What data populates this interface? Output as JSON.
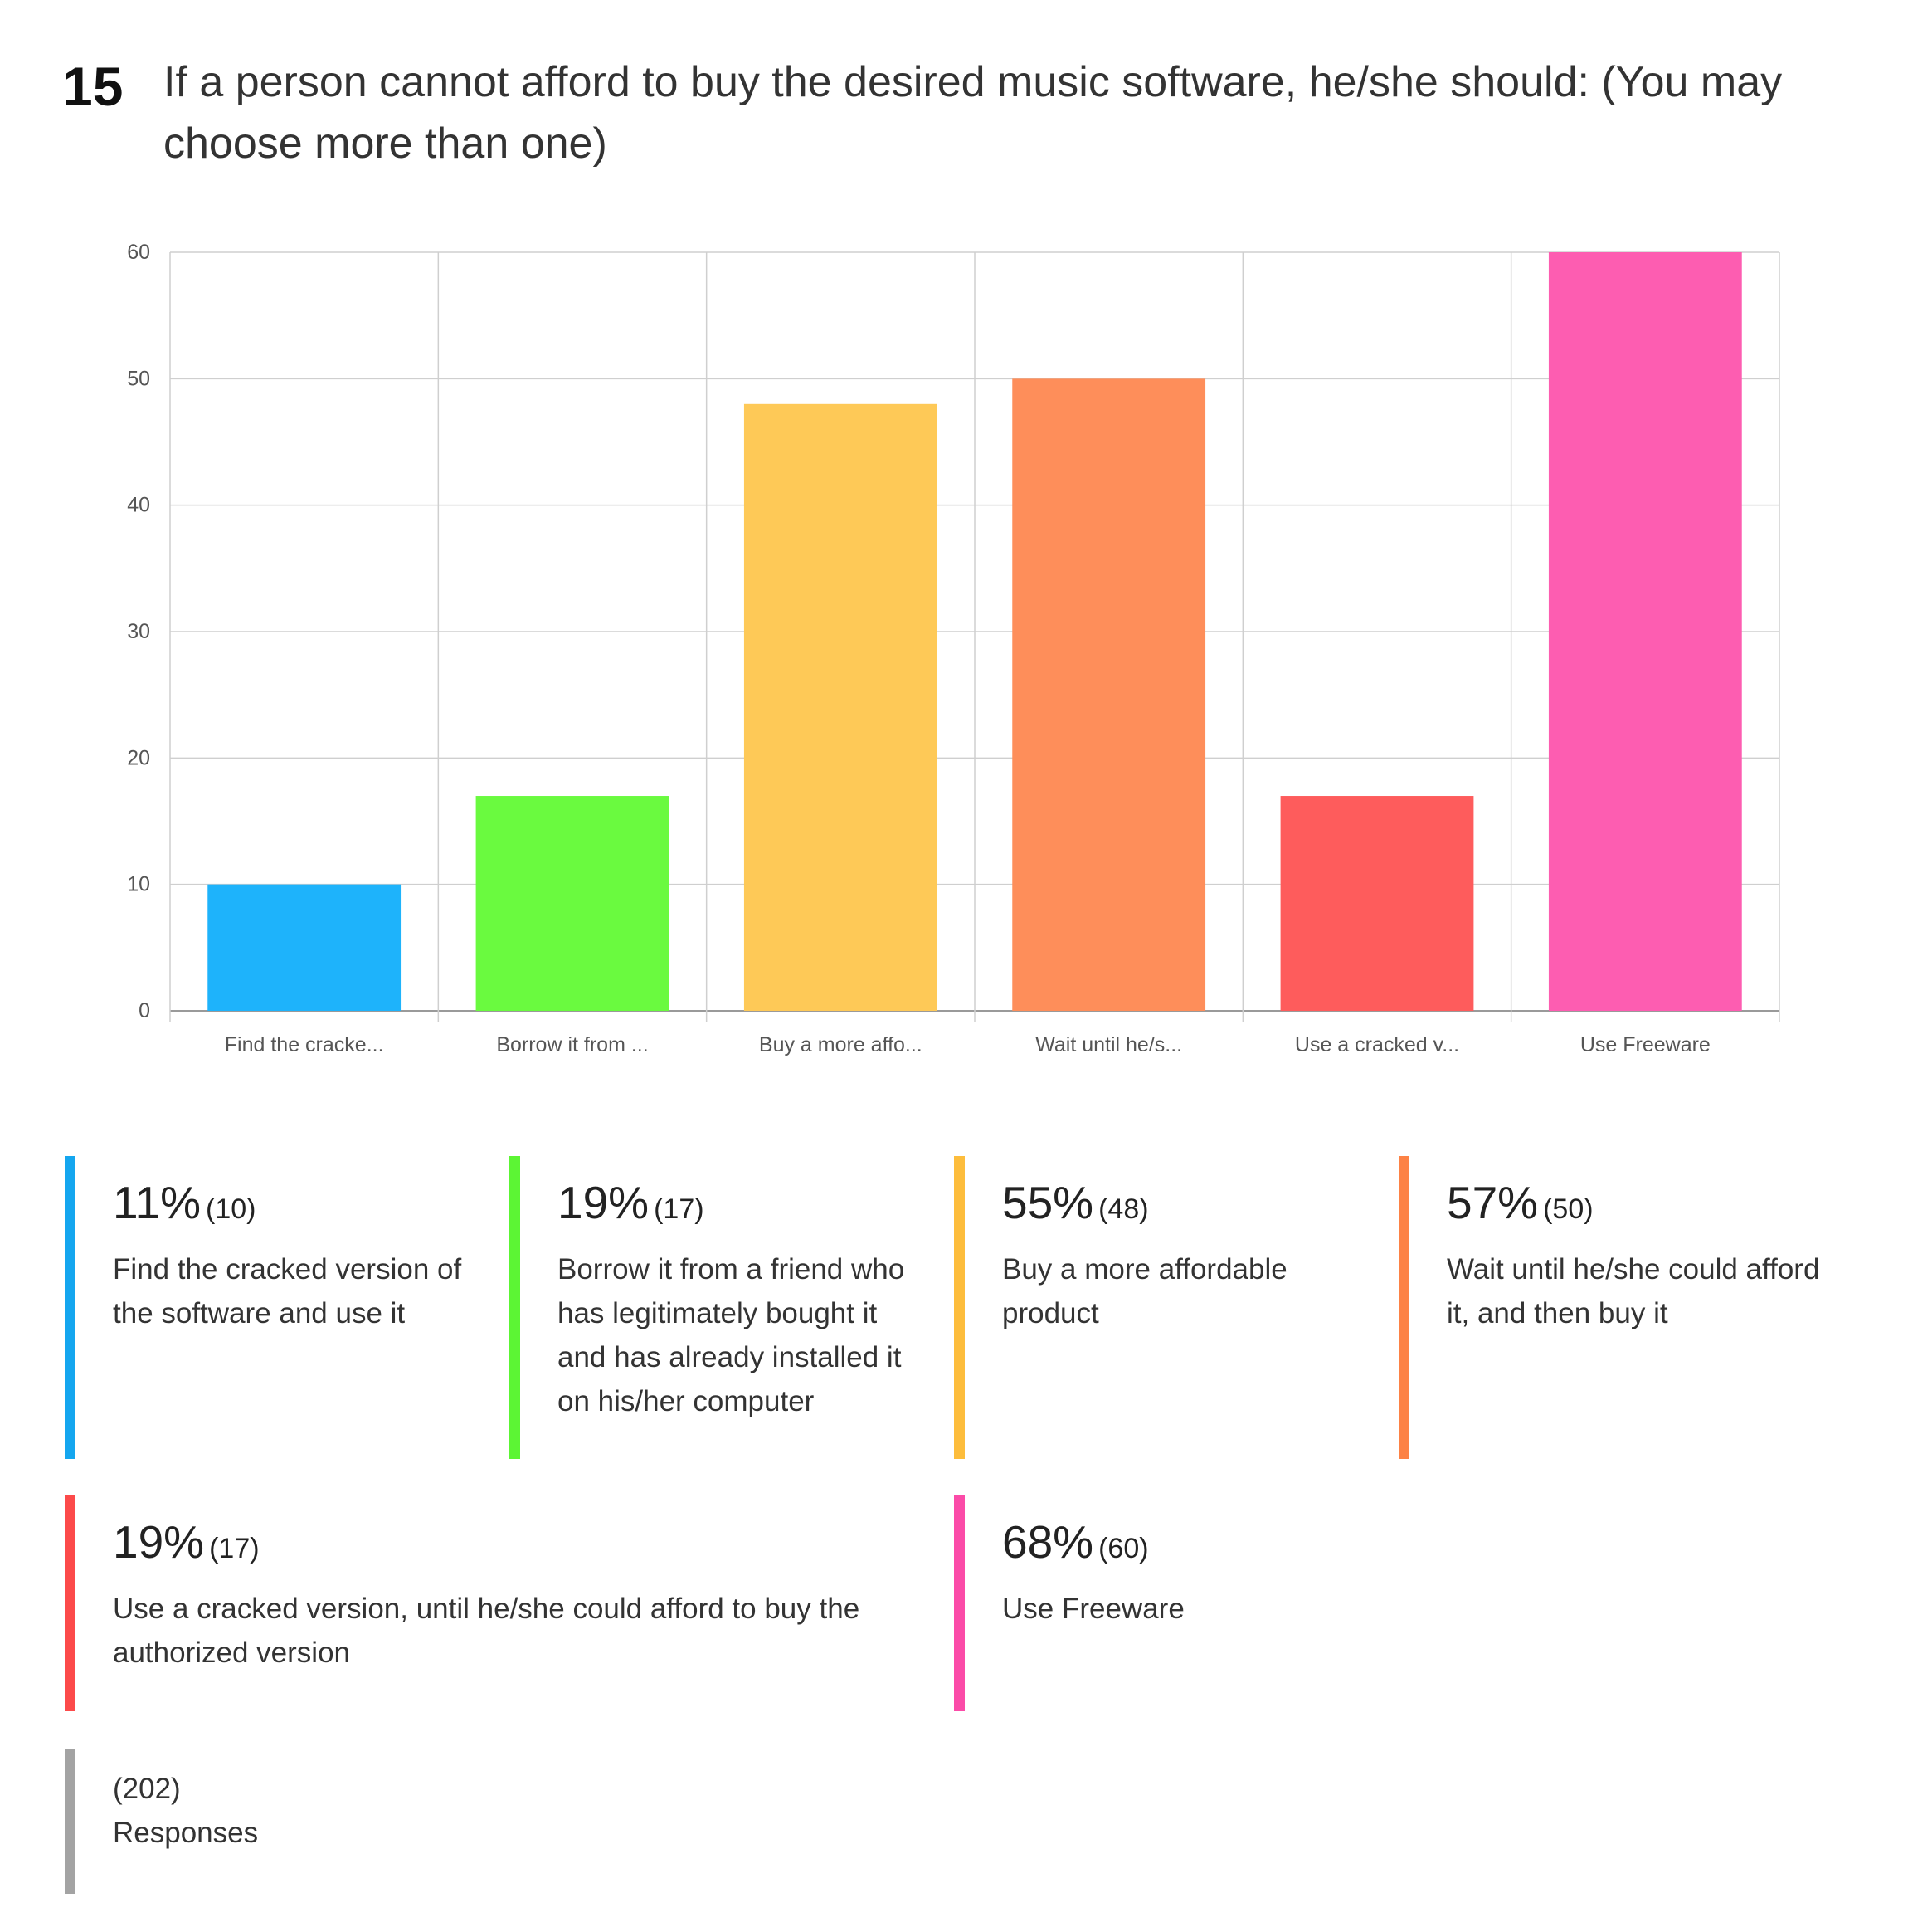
{
  "question": {
    "number": "15",
    "title": "If a person cannot afford to buy the desired music software, he/she should: (You may choose more than one)"
  },
  "chart_data": {
    "type": "bar",
    "categories": [
      "Find the cracke...",
      "Borrow it from ...",
      "Buy a more affo...",
      "Wait until he/s...",
      "Use a cracked v...",
      "Use Freeware"
    ],
    "values": [
      10,
      17,
      48,
      50,
      17,
      60
    ],
    "colors": [
      "#1eb3fb",
      "#6afa3f",
      "#fec957",
      "#fe8e5a",
      "#fe5c5c",
      "#fd5db1"
    ],
    "ylim": [
      0,
      60
    ],
    "yticks": [
      "0",
      "10",
      "20",
      "30",
      "40",
      "50",
      "60"
    ],
    "grid": true,
    "xlabel": "",
    "ylabel": ""
  },
  "legend": [
    {
      "pct": "11%",
      "count": "(10)",
      "label": "Find the cracked version of the software and use it",
      "color": "#14a6ef"
    },
    {
      "pct": "19%",
      "count": "(17)",
      "label": "Borrow it from a friend who has legitimately bought it and has already installed it on his/her computer",
      "color": "#5cf534"
    },
    {
      "pct": "55%",
      "count": "(48)",
      "label": "Buy a more affordable product",
      "color": "#fdbd3c"
    },
    {
      "pct": "57%",
      "count": "(50)",
      "label": "Wait until he/she could afford it, and then buy it",
      "color": "#fd8245"
    },
    {
      "pct": "19%",
      "count": "(17)",
      "label": "Use a cracked version, until he/she could afford to buy the authorized version",
      "color": "#fc4a4a"
    },
    {
      "pct": "68%",
      "count": "(60)",
      "label": "Use Freeware",
      "color": "#fb4ba8"
    }
  ],
  "responses": {
    "count": "(202)",
    "label": "Responses",
    "color": "#a3a3a3"
  }
}
